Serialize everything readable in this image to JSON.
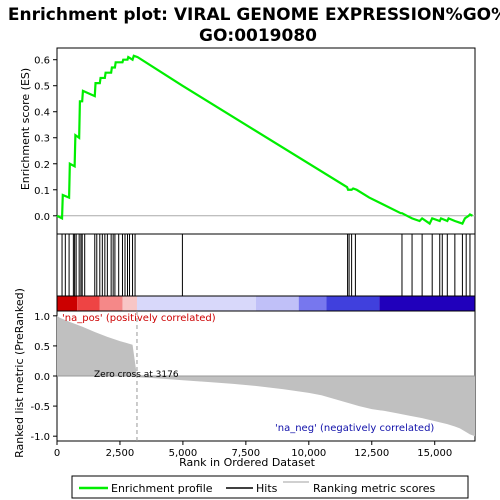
{
  "chart_data": {
    "type": "line",
    "title": "Enrichment plot: VIRAL GENOME EXPRESSION%GO%\nGO:0019080",
    "title_lines": [
      "Enrichment plot: VIRAL GENOME EXPRESSION%GO%",
      "GO:0019080"
    ],
    "xlabel": "Rank in Ordered Dataset",
    "xlim": [
      0,
      16600
    ],
    "x_ticks": [
      0,
      2500,
      5000,
      7500,
      10000,
      12500,
      15000
    ],
    "x_tick_labels": [
      "0",
      "2,500",
      "5,000",
      "7,500",
      "10,000",
      "12,500",
      "15,000"
    ],
    "top_panel": {
      "ylabel": "Enrichment score (ES)",
      "ylim": [
        -0.07,
        0.645
      ],
      "y_ticks": [
        0.0,
        0.1,
        0.2,
        0.3,
        0.4,
        0.5,
        0.6
      ],
      "y_tick_labels": [
        "0.0",
        "0.1",
        "0.2",
        "0.3",
        "0.4",
        "0.5",
        "0.6"
      ],
      "series": [
        {
          "name": "Enrichment profile",
          "color": "#00ee00",
          "x": [
            0,
            200,
            230,
            480,
            510,
            700,
            730,
            880,
            910,
            1000,
            1030,
            1500,
            1530,
            1700,
            1730,
            1900,
            1930,
            2150,
            2180,
            2300,
            2330,
            2600,
            2630,
            2800,
            2830,
            3000,
            3050,
            3200,
            4980,
            11520,
            11560,
            11700,
            11760,
            11900,
            12400,
            13650,
            13700,
            13900,
            14100,
            14400,
            14500,
            14800,
            14900,
            15200,
            15250,
            15500,
            15550,
            15800,
            16100,
            16200,
            16350,
            16400,
            16500
          ],
          "y": [
            0.0,
            -0.01,
            0.08,
            0.07,
            0.2,
            0.19,
            0.31,
            0.3,
            0.44,
            0.44,
            0.48,
            0.46,
            0.51,
            0.51,
            0.53,
            0.53,
            0.55,
            0.55,
            0.57,
            0.57,
            0.59,
            0.59,
            0.6,
            0.6,
            0.61,
            0.6,
            0.615,
            0.61,
            0.5,
            0.11,
            0.1,
            0.1,
            0.105,
            0.1,
            0.07,
            0.01,
            0.01,
            0.0,
            -0.01,
            -0.02,
            -0.01,
            -0.03,
            -0.01,
            -0.02,
            -0.01,
            -0.02,
            -0.01,
            -0.02,
            -0.03,
            -0.01,
            0.0,
            0.005,
            0.0
          ]
        }
      ]
    },
    "hits": [
      200,
      330,
      480,
      650,
      700,
      760,
      880,
      950,
      1000,
      1100,
      1500,
      1580,
      1700,
      1800,
      1900,
      2000,
      2150,
      2230,
      2300,
      2450,
      2600,
      2700,
      2800,
      2880,
      3000,
      3100,
      4980,
      11540,
      11600,
      11700,
      11850,
      13700,
      14100,
      14500,
      14900,
      15200,
      15300,
      15500,
      15800,
      16100,
      16250,
      16400
    ],
    "color_bar": {
      "segments": [
        {
          "from": 0,
          "to": 800,
          "color": "#cc0000"
        },
        {
          "from": 800,
          "to": 1700,
          "color": "#ee4444"
        },
        {
          "from": 1700,
          "to": 2600,
          "color": "#f58888"
        },
        {
          "from": 2600,
          "to": 3176,
          "color": "#f8c6c6"
        },
        {
          "from": 3176,
          "to": 7900,
          "color": "#d8d8fa"
        },
        {
          "from": 7900,
          "to": 9600,
          "color": "#c0c0f8"
        },
        {
          "from": 9600,
          "to": 10700,
          "color": "#7777ee"
        },
        {
          "from": 10700,
          "to": 12800,
          "color": "#4040dd"
        },
        {
          "from": 12800,
          "to": 16600,
          "color": "#2000bb"
        }
      ]
    },
    "bottom_panel": {
      "ylabel": "Ranked list metric (PreRanked)",
      "ylim": [
        -1.08,
        1.08
      ],
      "y_ticks": [
        1.0,
        0.5,
        0.0,
        -0.5,
        -1.0
      ],
      "y_tick_labels": [
        "1.0",
        "0.5",
        "0.0",
        "-0.5",
        "-1.0"
      ],
      "fill_color": "#c0c0c0",
      "metric": {
        "x": [
          0,
          100,
          500,
          1000,
          1500,
          2000,
          2500,
          3000,
          3176,
          3200,
          4000,
          5000,
          6000,
          7000,
          8000,
          9000,
          10000,
          10500,
          11000,
          11500,
          12000,
          12500,
          13000,
          13500,
          14000,
          14500,
          15000,
          15500,
          15800,
          16000,
          16200,
          16400,
          16600
        ],
        "y": [
          1.0,
          0.97,
          0.9,
          0.82,
          0.73,
          0.65,
          0.58,
          0.52,
          0.0,
          -0.02,
          -0.04,
          -0.07,
          -0.1,
          -0.13,
          -0.17,
          -0.22,
          -0.28,
          -0.32,
          -0.38,
          -0.44,
          -0.5,
          -0.55,
          -0.58,
          -0.62,
          -0.66,
          -0.7,
          -0.75,
          -0.8,
          -0.84,
          -0.87,
          -0.92,
          -0.97,
          -1.0
        ]
      },
      "annotations": {
        "pos_label": "'na_pos' (positively correlated)",
        "neg_label": "'na_neg' (negatively correlated)",
        "zero_cross": "Zero cross at 3176",
        "zero_cross_x": 3176
      }
    },
    "legend": {
      "items": [
        {
          "label": "Enrichment profile",
          "color": "#00ee00"
        },
        {
          "label": "Hits",
          "color": "#000000"
        },
        {
          "label": "Ranking metric scores",
          "color": "#c0c0c0"
        }
      ],
      "placement": "bottom"
    },
    "grid": false
  }
}
